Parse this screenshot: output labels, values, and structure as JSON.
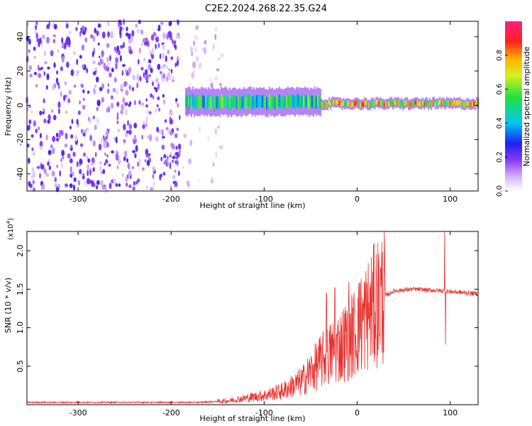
{
  "title": "C2E2.2024.268.22.35.G24",
  "chart_data": [
    {
      "type": "heatmap",
      "name": "spectrogram",
      "xlabel": "Height of straight line (km)",
      "ylabel": "Frequency (Hz)",
      "xlim": [
        -355,
        130
      ],
      "ylim": [
        -50,
        49
      ],
      "xticks": [
        -300,
        -200,
        -100,
        0,
        100
      ],
      "yticks": [
        -40,
        -20,
        0,
        20,
        40
      ],
      "colorbar": {
        "label": "Normalized spectral amplitude",
        "range": [
          0,
          1
        ],
        "ticks": [
          0.0,
          0.2,
          0.4,
          0.6,
          0.8
        ],
        "tick_labels": [
          "0.0",
          "0.2",
          "0.4",
          "0.6",
          "0.8"
        ],
        "colormap": "rainbow (white → purple → blue → cyan → green → yellow → red → magenta)"
      },
      "bands": [
        {
          "x": [
            -355,
            -190
          ],
          "y": [
            -50,
            49
          ],
          "kind": "scattered noise",
          "density": 0.55,
          "amp": [
            0.05,
            0.25
          ]
        },
        {
          "x": [
            -190,
            -145
          ],
          "y": [
            -50,
            49
          ],
          "kind": "scattered noise",
          "density": 0.18,
          "amp": [
            0.02,
            0.12
          ]
        },
        {
          "x": [
            -185,
            -40
          ],
          "y_center": 2,
          "y_halfwidth": 8,
          "kind": "signal band",
          "amp": [
            0.1,
            0.55
          ]
        },
        {
          "x": [
            -40,
            130
          ],
          "y_center": 1,
          "y_halfwidth": 3,
          "kind": "signal band",
          "amp": [
            0.3,
            0.9
          ]
        }
      ]
    },
    {
      "type": "line",
      "name": "snr",
      "xlabel": "Height of straight line (km)",
      "ylabel": "SNR (10 * v/v)",
      "y_multiplier_label": "(x10",
      "y_multiplier_exp": "4",
      "y_multiplier_close": ")",
      "xlim": [
        -355,
        130
      ],
      "ylim": [
        0,
        2.25
      ],
      "xticks": [
        -300,
        -200,
        -100,
        0,
        100
      ],
      "yticks": [
        0.5,
        1.0,
        1.5,
        2.0
      ],
      "ytick_labels": [
        "0.5",
        "1.0",
        "1.5",
        "2.0"
      ],
      "color": "#e8322f",
      "envelope": [
        {
          "x": -355,
          "y": 0.03
        },
        {
          "x": -170,
          "y": 0.03
        },
        {
          "x": -140,
          "y": 0.05
        },
        {
          "x": -100,
          "y": 0.12
        },
        {
          "x": -80,
          "y": 0.18
        },
        {
          "x": -60,
          "y": 0.3
        },
        {
          "x": -40,
          "y": 0.55
        },
        {
          "x": -20,
          "y": 0.75
        },
        {
          "x": -5,
          "y": 0.9
        },
        {
          "x": 10,
          "y": 1.15
        },
        {
          "x": 25,
          "y": 1.38
        },
        {
          "x": 40,
          "y": 1.48
        },
        {
          "x": 60,
          "y": 1.5
        },
        {
          "x": 90,
          "y": 1.48
        },
        {
          "x": 130,
          "y": 1.44
        }
      ],
      "spikes": [
        {
          "x": -33,
          "y": 1.45
        },
        {
          "x": -24,
          "y": 1.52
        },
        {
          "x": -9,
          "y": 1.6
        },
        {
          "x": 3,
          "y": 1.58
        },
        {
          "x": 94,
          "y": 2.25
        },
        {
          "x": 95,
          "y": 0.78
        }
      ]
    }
  ],
  "colors": {
    "line": "#e8322f",
    "heat_low": "#ffffff",
    "heat_mid": "#7a1fe0",
    "heat_high": "#ff2060"
  }
}
